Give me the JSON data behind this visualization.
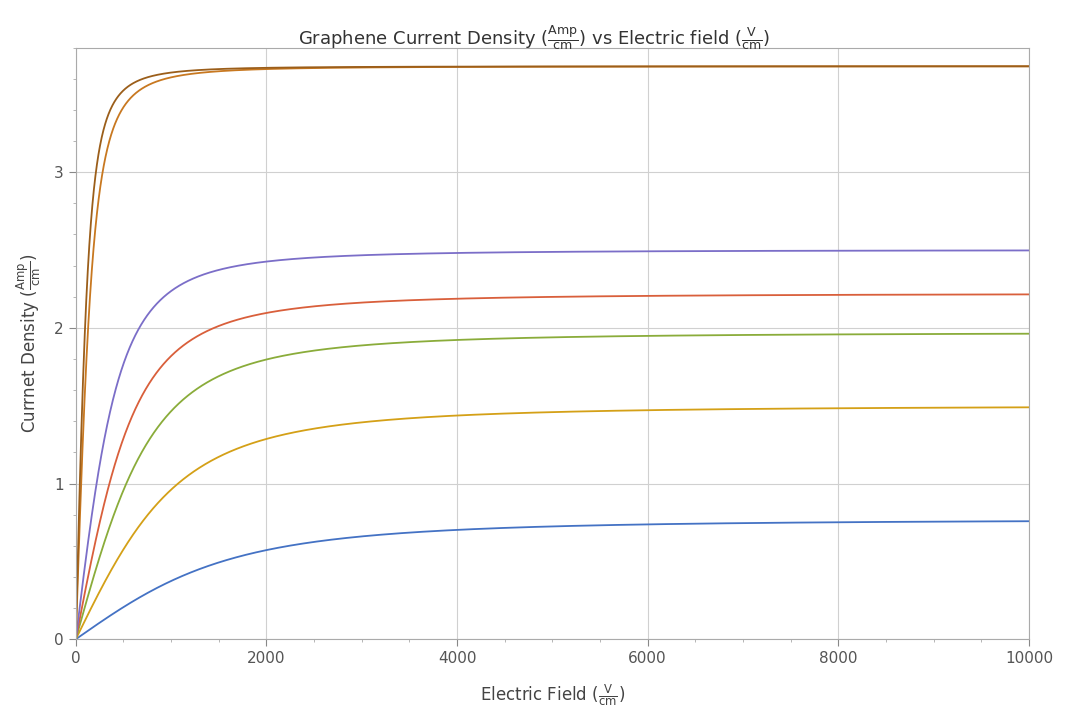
{
  "title": "Graphene Current Density ($\\frac{\\mathrm{Amp}}{\\mathrm{cm}}$) vs Electric field ($\\frac{\\mathrm{V}}{\\mathrm{cm}}$)",
  "xlabel": "Electric Field ($\\frac{\\mathrm{V}}{\\mathrm{cm}}$)",
  "ylabel": "Currnet Density ($\\frac{\\mathrm{Amp}}{\\mathrm{cm}}$)",
  "xlim": [
    0,
    10000
  ],
  "ylim": [
    0,
    3.8
  ],
  "xticks": [
    0,
    2000,
    4000,
    6000,
    8000,
    10000
  ],
  "yticks": [
    0,
    1,
    2,
    3
  ],
  "background_color": "#ffffff",
  "grid_color": "#d0d0d0",
  "curves": [
    {
      "j_sat": 0.77,
      "E_c": 1800,
      "color": "#4472c4"
    },
    {
      "j_sat": 1.5,
      "E_c": 1200,
      "color": "#d4a017"
    },
    {
      "j_sat": 1.97,
      "E_c": 900,
      "color": "#8aac3a"
    },
    {
      "j_sat": 2.22,
      "E_c": 700,
      "color": "#d95f3b"
    },
    {
      "j_sat": 2.5,
      "E_c": 500,
      "color": "#7b6ec8"
    },
    {
      "j_sat": 3.68,
      "E_c": 200,
      "color": "#c87820"
    },
    {
      "j_sat": 3.68,
      "E_c": 150,
      "color": "#9b5e1a"
    }
  ]
}
